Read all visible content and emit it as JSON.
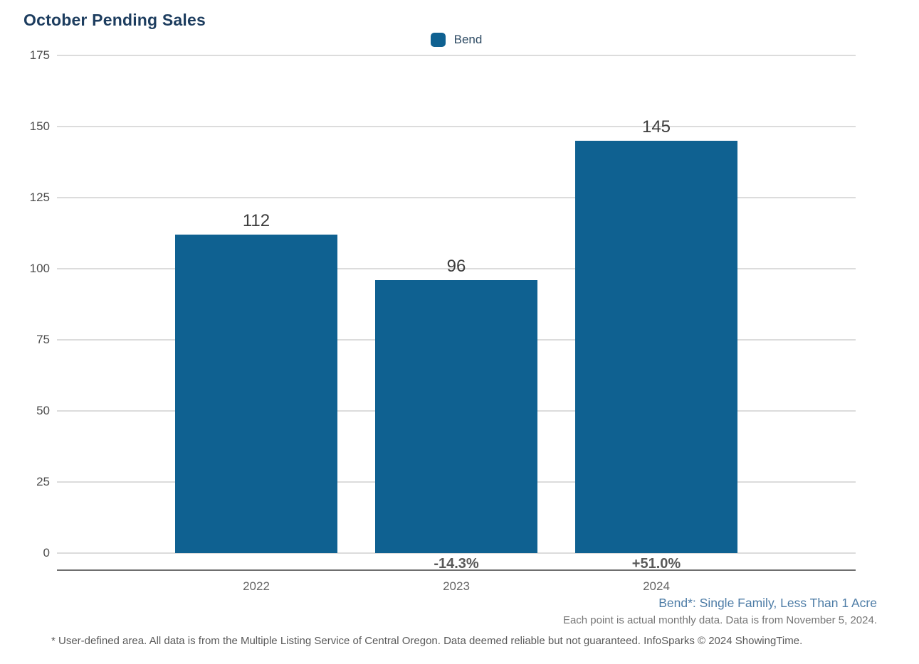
{
  "title": "October Pending Sales",
  "legend": {
    "label": "Bend",
    "color": "#0f6191"
  },
  "chart_data": {
    "type": "bar",
    "title": "October Pending Sales",
    "series_name": "Bend",
    "categories": [
      "2022",
      "2023",
      "2024"
    ],
    "values": [
      112,
      96,
      145
    ],
    "bar_labels": [
      "112",
      "96",
      "145"
    ],
    "pct_change_labels": [
      "",
      "-14.3%",
      "+51.0%"
    ],
    "bar_color": "#0f6191",
    "xlabel": "",
    "ylabel": "",
    "ylim": [
      0,
      175
    ],
    "yticks": [
      0,
      25,
      50,
      75,
      100,
      125,
      150,
      175
    ],
    "grid": true,
    "legend_position": "top-center"
  },
  "footnotes": {
    "series_definition": "Bend*: Single Family, Less Than 1 Acre",
    "data_note": "Each point is actual monthly data. Data is from November 5, 2024.",
    "disclaimer": "* User-defined area. All data is from the Multiple Listing Service of Central Oregon. Data deemed reliable but not guaranteed. InfoSparks © 2024 ShowingTime."
  },
  "colors": {
    "title_text": "#1d3d5f",
    "bar": "#0f6191",
    "gridline": "#dcdcdc",
    "axis_line": "#6f6f6f",
    "value_label": "#3d3d3d",
    "pct_label": "#595959",
    "tick_label": "#4d4d4d",
    "series_footnote": "#4d7ca6",
    "note_footnote": "#757575"
  }
}
